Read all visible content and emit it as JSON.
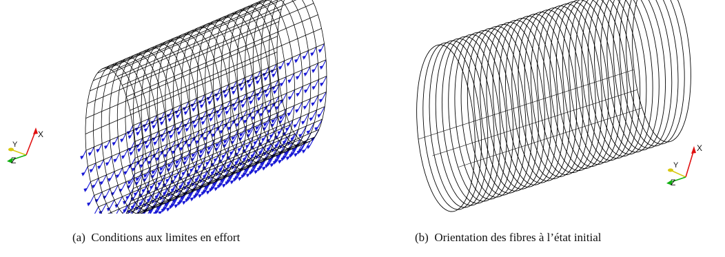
{
  "panels": [
    {
      "caption_tag": "(a)",
      "caption_text": "Conditions aux limites en effort",
      "triad": {
        "x": "X",
        "y": "Y",
        "z": "Z"
      }
    },
    {
      "caption_tag": "(b)",
      "caption_text": "Orientation des fibres à l’état initial",
      "triad": {
        "x": "X",
        "y": "Y",
        "z": "Z"
      }
    }
  ],
  "colors": {
    "mesh": "#000000",
    "force_arrows": "#1a1ad6",
    "axis_x": "#e01010",
    "axis_y": "#d8c810",
    "axis_z": "#10b010"
  },
  "icons": [
    "axis-triad-icon"
  ]
}
